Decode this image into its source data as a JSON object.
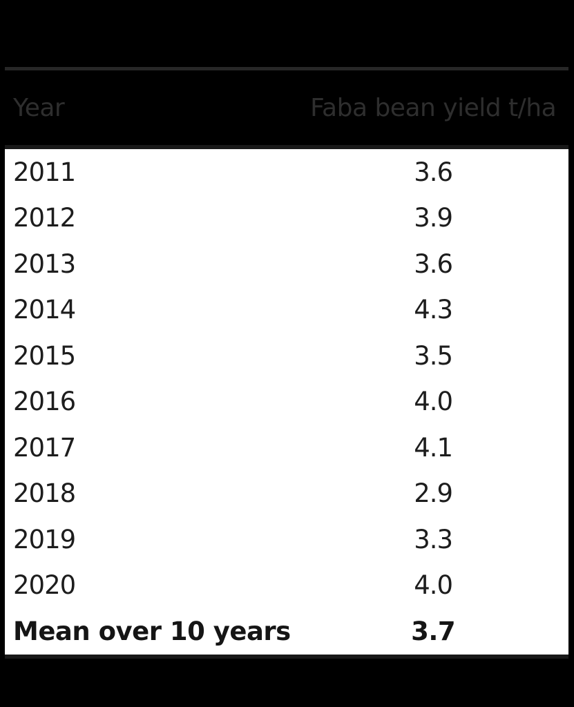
{
  "table": {
    "columns": [
      "Year",
      "Faba bean yield t/ha"
    ],
    "rows": [
      {
        "year": "2011",
        "value": "3.6"
      },
      {
        "year": "2012",
        "value": "3.9"
      },
      {
        "year": "2013",
        "value": "3.6"
      },
      {
        "year": "2014",
        "value": "4.3"
      },
      {
        "year": "2015",
        "value": "3.5"
      },
      {
        "year": "2016",
        "value": "4.0"
      },
      {
        "year": "2017",
        "value": "4.1"
      },
      {
        "year": "2018",
        "value": "2.9"
      },
      {
        "year": "2019",
        "value": "3.3"
      },
      {
        "year": "2020",
        "value": "4.0"
      }
    ],
    "footer": {
      "label": "Mean over 10 years",
      "value": "3.7"
    }
  },
  "chart_data": {
    "type": "table",
    "columns": [
      "Year",
      "Faba bean yield t/ha"
    ],
    "categories": [
      "2011",
      "2012",
      "2013",
      "2014",
      "2015",
      "2016",
      "2017",
      "2018",
      "2019",
      "2020"
    ],
    "values": [
      3.6,
      3.9,
      3.6,
      4.3,
      3.5,
      4.0,
      4.1,
      2.9,
      3.3,
      4.0
    ],
    "footer": {
      "label": "Mean over 10 years",
      "value": 3.7
    },
    "xlabel": "Year",
    "ylabel": "Faba bean yield t/ha"
  },
  "colors": {
    "background": "#000000",
    "table_background": "#ffffff",
    "header_text": "#2e2e2e",
    "body_text": "#1d1d1d",
    "top_rule": "#272727",
    "heavy_rule": "#191919"
  }
}
